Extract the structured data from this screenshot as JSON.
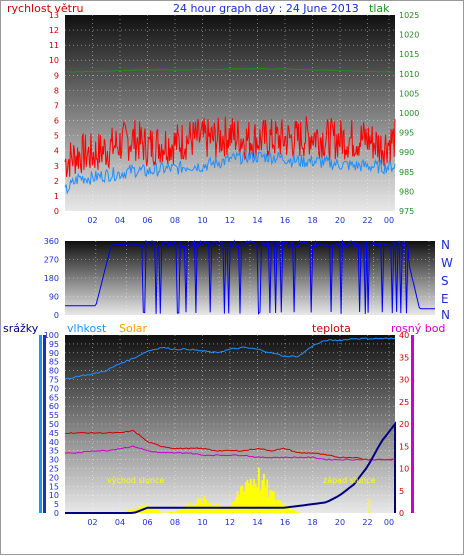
{
  "header": {
    "wind_label": "rychlost větru",
    "title": "24 hour graph day : 24 June 2013",
    "pressure_label": "tlak"
  },
  "time_labels": [
    "02",
    "04",
    "06",
    "08",
    "10",
    "12",
    "14",
    "16",
    "18",
    "20",
    "22",
    "00"
  ],
  "compass": [
    "N",
    "W",
    "S",
    "E",
    "N"
  ],
  "bottom_labels": {
    "rain": "srážky",
    "humidity": "vlhkost",
    "solar": "Solar",
    "temp": "teplota",
    "dew": "rosný bod",
    "sunrise": "východ slunce",
    "sunset": "západ slunce"
  },
  "colors": {
    "wind": "#ff0000",
    "wind_avg": "#1e90ff",
    "pressure": "#228b22",
    "direction": "#0000ff",
    "humidity": "#1e90ff",
    "temp": "#cc0000",
    "dew": "#cc00cc",
    "solar": "#ffff00",
    "rain": "#000080"
  },
  "chart_data": [
    {
      "type": "line",
      "title": "24 hour graph day : 24 June 2013",
      "xlabel": "",
      "x": [
        "02",
        "04",
        "06",
        "08",
        "10",
        "12",
        "14",
        "16",
        "18",
        "20",
        "22",
        "00"
      ],
      "y_left": {
        "label": "rychlost větru",
        "lim": [
          0,
          13
        ],
        "ticks": [
          0,
          1,
          2,
          3,
          4,
          5,
          6,
          7,
          8,
          9,
          10,
          11,
          12,
          13
        ]
      },
      "y_right": {
        "label": "tlak",
        "lim": [
          975,
          1025
        ],
        "ticks": [
          975,
          980,
          985,
          990,
          995,
          1000,
          1005,
          1010,
          1015,
          1020,
          1025
        ]
      },
      "series": [
        {
          "name": "rychlost větru",
          "axis": "left",
          "values_by_hour": [
            3.0,
            3.5,
            3.5,
            3.8,
            4.2,
            4.5,
            4.0,
            4.2,
            4.2,
            4.5,
            4.5,
            4.5,
            4.8,
            4.5,
            4.5,
            4.5,
            4.5,
            4.5,
            4.8,
            4.5,
            4.5,
            4.5,
            4.5,
            4.0,
            4.5
          ]
        },
        {
          "name": "",
          "axis": "left",
          "values_by_hour": [
            1.3,
            2.2,
            2.2,
            2.4,
            2.5,
            2.7,
            2.6,
            2.8,
            2.8,
            3.0,
            3.0,
            3.2,
            3.4,
            3.6,
            3.6,
            3.6,
            3.5,
            3.3,
            3.3,
            3.2,
            3.1,
            3.0,
            3.0,
            2.9,
            3.0
          ]
        },
        {
          "name": "tlak",
          "axis": "right",
          "values_by_hour": [
            1010.5,
            1010.5,
            1010.6,
            1010.7,
            1010.8,
            1010.9,
            1011.0,
            1011.0,
            1011.0,
            1011.0,
            1011.1,
            1011.1,
            1011.2,
            1011.3,
            1011.3,
            1011.2,
            1011.2,
            1011.1,
            1011.0,
            1010.9,
            1010.8,
            1010.7,
            1010.6,
            1010.5,
            1010.5
          ]
        }
      ]
    },
    {
      "type": "line",
      "title": "",
      "y": {
        "label": "",
        "lim": [
          0,
          360
        ],
        "ticks": [
          0,
          90,
          180,
          270,
          360
        ]
      },
      "series": [
        {
          "name": "",
          "values_by_hour": [
            45,
            45,
            45,
            340,
            345,
            345,
            340,
            340,
            0,
            350,
            335,
            345,
            350,
            0,
            345,
            355,
            350,
            350,
            5,
            340,
            350,
            355,
            345,
            30,
            30
          ]
        }
      ]
    },
    {
      "type": "line",
      "title": "",
      "y_left": {
        "label": "srážky",
        "lim": [
          0,
          100
        ],
        "ticks": [
          0,
          5,
          10,
          15,
          20,
          25,
          30,
          35,
          40,
          45,
          50,
          55,
          60,
          65,
          70,
          75,
          80,
          85,
          90,
          95,
          100
        ]
      },
      "y_right": {
        "label": "teplota",
        "lim": [
          0,
          40
        ],
        "ticks": [
          0,
          5,
          10,
          15,
          20,
          25,
          30,
          35,
          40
        ]
      },
      "series": [
        {
          "name": "vlhkost",
          "axis": "left",
          "values_by_hour": [
            75,
            77,
            78,
            80,
            84,
            87,
            91,
            93,
            92,
            92,
            91,
            90,
            92,
            93,
            92,
            90,
            88,
            88,
            94,
            97,
            97,
            98,
            98,
            98,
            98
          ]
        },
        {
          "name": "teplota",
          "axis": "right",
          "values_by_hour": [
            18,
            18,
            18,
            18,
            18,
            18.5,
            16,
            15,
            14.5,
            14.5,
            14.5,
            14,
            14,
            14,
            14.5,
            14,
            14.5,
            13.5,
            13.5,
            13,
            12.5,
            12.5,
            12,
            12,
            12
          ]
        },
        {
          "name": "rosný bod",
          "axis": "right",
          "values_by_hour": [
            13.5,
            13.5,
            14,
            14,
            14.5,
            15,
            14,
            13.5,
            13.5,
            13.5,
            13,
            13,
            13,
            13,
            12.5,
            12.5,
            12.5,
            12.5,
            12.5,
            12,
            12,
            12,
            12,
            12,
            12
          ]
        },
        {
          "name": "Solar",
          "axis": "left",
          "values_by_hour": [
            0,
            0,
            0,
            0,
            0,
            3,
            4,
            0,
            1,
            5,
            7,
            5,
            3,
            18,
            20,
            10,
            4,
            0,
            0,
            0,
            0,
            0,
            0,
            0,
            0
          ]
        },
        {
          "name": "srážky",
          "axis": "left",
          "values_by_hour": [
            0,
            0,
            0,
            0,
            0,
            0,
            3,
            3,
            3,
            3,
            3,
            3,
            3,
            3,
            3,
            3,
            3,
            4,
            5,
            6,
            10,
            16,
            26,
            40,
            50
          ]
        }
      ]
    }
  ]
}
